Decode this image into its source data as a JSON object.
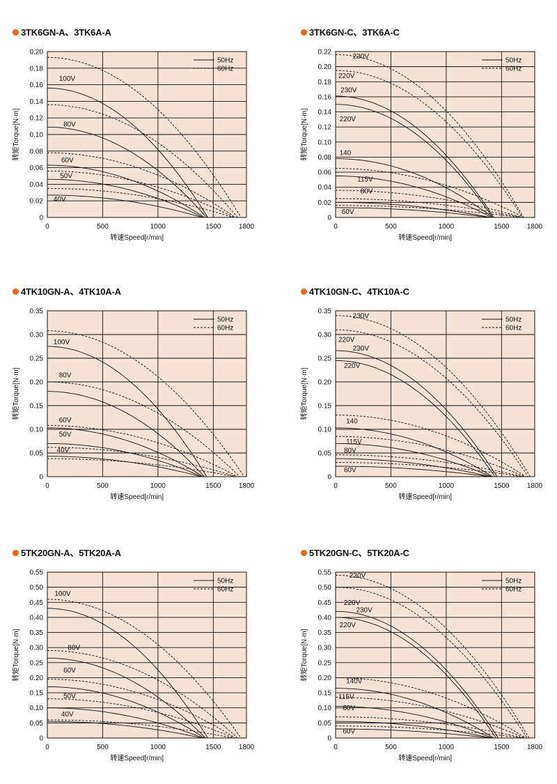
{
  "colors": {
    "plot_bg": "#f7e3d3",
    "grid": "#111111",
    "bullet": "#e8651c"
  },
  "chart_data": [
    {
      "type": "line",
      "title": "3TK6GN-A、3TK6A-A",
      "xlabel": "转速Speed[r/min]",
      "ylabel": "转矩Torque[N·m]",
      "xlim": [
        0,
        1800
      ],
      "ylim": [
        0,
        0.2
      ],
      "xticks": [
        0,
        500,
        1000,
        1500,
        1800
      ],
      "yticks": [
        0,
        0.02,
        0.04,
        0.06,
        0.08,
        0.1,
        0.12,
        0.14,
        0.16,
        0.18,
        0.2
      ],
      "ytick_labels": [
        "0",
        "0.02",
        "0.04",
        "0.06",
        "0.08",
        "0.10",
        "0.12",
        "0.14",
        "0.16",
        "0.18",
        "0.20"
      ],
      "legend": [
        "50Hz",
        "60Hz"
      ],
      "voltage_labels": [
        {
          "text": "100V",
          "x": 80,
          "y": 0.162
        },
        {
          "text": "80V",
          "x": 120,
          "y": 0.107
        },
        {
          "text": "60V",
          "x": 100,
          "y": 0.064
        },
        {
          "text": "50V",
          "x": 90,
          "y": 0.045
        },
        {
          "text": "40V",
          "x": 30,
          "y": 0.017
        }
      ],
      "series": [
        {
          "name": "100V 50Hz",
          "freq": "50Hz",
          "y0": 0.156,
          "xmax": 1450
        },
        {
          "name": "100V 60Hz",
          "freq": "60Hz",
          "y0": 0.193,
          "xmax": 1750
        },
        {
          "name": "80V 50Hz",
          "freq": "50Hz",
          "y0": 0.109,
          "xmax": 1440
        },
        {
          "name": "80V 60Hz",
          "freq": "60Hz",
          "y0": 0.136,
          "xmax": 1720
        },
        {
          "name": "60V 50Hz",
          "freq": "50Hz",
          "y0": 0.063,
          "xmax": 1420
        },
        {
          "name": "60V 60Hz",
          "freq": "60Hz",
          "y0": 0.078,
          "xmax": 1700
        },
        {
          "name": "50V 50Hz",
          "freq": "50Hz",
          "y0": 0.046,
          "xmax": 1410
        },
        {
          "name": "50V 60Hz",
          "freq": "60Hz",
          "y0": 0.056,
          "xmax": 1690
        },
        {
          "name": "40V 50Hz",
          "freq": "50Hz",
          "y0": 0.027,
          "xmax": 1400
        },
        {
          "name": "40V 60Hz",
          "freq": "60Hz",
          "y0": 0.035,
          "xmax": 1680
        }
      ]
    },
    {
      "type": "line",
      "title": "3TK6GN-C、3TK6A-C",
      "xlabel": "转速Speed[r/min]",
      "ylabel": "转矩Torque[N·m]",
      "xlim": [
        0,
        1800
      ],
      "ylim": [
        0,
        0.22
      ],
      "xticks": [
        0,
        500,
        1000,
        1500,
        1800
      ],
      "yticks": [
        0,
        0.02,
        0.04,
        0.06,
        0.08,
        0.1,
        0.12,
        0.14,
        0.16,
        0.18,
        0.2,
        0.22
      ],
      "ytick_labels": [
        "0",
        "0.02",
        "0.04",
        "0.06",
        "0.08",
        "0.10",
        "0.12",
        "0.14",
        "0.16",
        "0.18",
        "0.20",
        "0.22"
      ],
      "legend": [
        "50Hz",
        "60Hz"
      ],
      "voltage_labels": [
        {
          "text": "230V",
          "x": 130,
          "y": 0.208
        },
        {
          "text": "220V",
          "x": 0,
          "y": 0.182
        },
        {
          "text": "230V",
          "x": 20,
          "y": 0.163
        },
        {
          "text": "220V",
          "x": 10,
          "y": 0.125
        },
        {
          "text": "140",
          "x": 10,
          "y": 0.08
        },
        {
          "text": "115V",
          "x": 170,
          "y": 0.045
        },
        {
          "text": "80V",
          "x": 200,
          "y": 0.029
        },
        {
          "text": "60V",
          "x": 30,
          "y": 0.002
        }
      ],
      "series": [
        {
          "name": "230V 60Hz",
          "freq": "60Hz",
          "y0": 0.216,
          "xmax": 1700
        },
        {
          "name": "220V 60Hz",
          "freq": "60Hz",
          "y0": 0.195,
          "xmax": 1690
        },
        {
          "name": "230V 50Hz",
          "freq": "50Hz",
          "y0": 0.161,
          "xmax": 1430
        },
        {
          "name": "220V 50Hz",
          "freq": "50Hz",
          "y0": 0.15,
          "xmax": 1420
        },
        {
          "name": "140 50Hz",
          "freq": "50Hz",
          "y0": 0.078,
          "xmax": 1420
        },
        {
          "name": "140 60Hz",
          "freq": "60Hz",
          "y0": 0.065,
          "xmax": 1700
        },
        {
          "name": "115V 50Hz",
          "freq": "50Hz",
          "y0": 0.055,
          "xmax": 1410
        },
        {
          "name": "115V 60Hz",
          "freq": "60Hz",
          "y0": 0.036,
          "xmax": 1690
        },
        {
          "name": "80V 50Hz",
          "freq": "50Hz",
          "y0": 0.02,
          "xmax": 1400
        },
        {
          "name": "80V 60Hz",
          "freq": "60Hz",
          "y0": 0.025,
          "xmax": 1680
        },
        {
          "name": "60V 50Hz",
          "freq": "50Hz",
          "y0": 0.013,
          "xmax": 1390
        },
        {
          "name": "60V 60Hz",
          "freq": "60Hz",
          "y0": 0.016,
          "xmax": 1670
        }
      ]
    },
    {
      "type": "line",
      "title": "4TK10GN-A、4TK10A-A",
      "xlabel": "转速Speed[r/min]",
      "ylabel": "转矩Torque[N·m]",
      "xlim": [
        0,
        1800
      ],
      "ylim": [
        0,
        0.35
      ],
      "xticks": [
        0,
        500,
        1000,
        1500,
        1800
      ],
      "yticks": [
        0,
        0.05,
        0.1,
        0.15,
        0.2,
        0.25,
        0.3,
        0.35
      ],
      "ytick_labels": [
        "0",
        "0.05",
        "0.10",
        "0.15",
        "0.20",
        "0.25",
        "0.30",
        "0.35"
      ],
      "legend": [
        "50Hz",
        "60Hz"
      ],
      "voltage_labels": [
        {
          "text": "100V",
          "x": 30,
          "y": 0.275
        },
        {
          "text": "80V",
          "x": 80,
          "y": 0.205
        },
        {
          "text": "60V",
          "x": 80,
          "y": 0.11
        },
        {
          "text": "50V",
          "x": 80,
          "y": 0.08
        },
        {
          "text": "40V",
          "x": 60,
          "y": 0.047
        }
      ],
      "series": [
        {
          "name": "100V 50Hz",
          "freq": "50Hz",
          "y0": 0.275,
          "xmax": 1440
        },
        {
          "name": "100V 60Hz",
          "freq": "60Hz",
          "y0": 0.308,
          "xmax": 1780
        },
        {
          "name": "80V 50Hz",
          "freq": "50Hz",
          "y0": 0.18,
          "xmax": 1420
        },
        {
          "name": "80V 60Hz",
          "freq": "60Hz",
          "y0": 0.2,
          "xmax": 1740
        },
        {
          "name": "60V 50Hz",
          "freq": "50Hz",
          "y0": 0.103,
          "xmax": 1410
        },
        {
          "name": "60V 60Hz",
          "freq": "60Hz",
          "y0": 0.108,
          "xmax": 1720
        },
        {
          "name": "50V 50Hz",
          "freq": "50Hz",
          "y0": 0.07,
          "xmax": 1400
        },
        {
          "name": "50V 60Hz",
          "freq": "60Hz",
          "y0": 0.062,
          "xmax": 1710
        },
        {
          "name": "40V 50Hz",
          "freq": "50Hz",
          "y0": 0.043,
          "xmax": 1390
        },
        {
          "name": "40V 60Hz",
          "freq": "60Hz",
          "y0": 0.038,
          "xmax": 1700
        }
      ]
    },
    {
      "type": "line",
      "title": "4TK10GN-C、4TK10A-C",
      "xlabel": "转速Speed[r/min]",
      "ylabel": "转矩Torque[N·m]",
      "xlim": [
        0,
        1800
      ],
      "ylim": [
        0,
        0.35
      ],
      "xticks": [
        0,
        500,
        1000,
        1500,
        1800
      ],
      "yticks": [
        0,
        0.05,
        0.1,
        0.15,
        0.2,
        0.25,
        0.3,
        0.35
      ],
      "ytick_labels": [
        "0",
        "0.05",
        "0.10",
        "0.15",
        "0.20",
        "0.25",
        "0.30",
        "0.35"
      ],
      "legend": [
        "50Hz",
        "60Hz"
      ],
      "voltage_labels": [
        {
          "text": "230V",
          "x": 130,
          "y": 0.33
        },
        {
          "text": "220V",
          "x": 0,
          "y": 0.28
        },
        {
          "text": "230V",
          "x": 130,
          "y": 0.262
        },
        {
          "text": "220V",
          "x": 50,
          "y": 0.225
        },
        {
          "text": "140",
          "x": 70,
          "y": 0.108
        },
        {
          "text": "115V",
          "x": 70,
          "y": 0.065
        },
        {
          "text": "80V",
          "x": 50,
          "y": 0.046
        },
        {
          "text": "60V",
          "x": 50,
          "y": 0.005
        }
      ],
      "series": [
        {
          "name": "230V 60Hz",
          "freq": "60Hz",
          "y0": 0.34,
          "xmax": 1760
        },
        {
          "name": "220V 60Hz",
          "freq": "60Hz",
          "y0": 0.31,
          "xmax": 1740
        },
        {
          "name": "230V 50Hz",
          "freq": "50Hz",
          "y0": 0.266,
          "xmax": 1460
        },
        {
          "name": "220V 50Hz",
          "freq": "50Hz",
          "y0": 0.245,
          "xmax": 1440
        },
        {
          "name": "140 50Hz",
          "freq": "50Hz",
          "y0": 0.103,
          "xmax": 1420
        },
        {
          "name": "140 60Hz",
          "freq": "60Hz",
          "y0": 0.13,
          "xmax": 1720
        },
        {
          "name": "115V 50Hz",
          "freq": "50Hz",
          "y0": 0.07,
          "xmax": 1410
        },
        {
          "name": "115V 60Hz",
          "freq": "60Hz",
          "y0": 0.085,
          "xmax": 1710
        },
        {
          "name": "80V 50Hz",
          "freq": "50Hz",
          "y0": 0.038,
          "xmax": 1400
        },
        {
          "name": "80V 60Hz",
          "freq": "60Hz",
          "y0": 0.046,
          "xmax": 1700
        },
        {
          "name": "60V 50Hz",
          "freq": "50Hz",
          "y0": 0.022,
          "xmax": 1390
        },
        {
          "name": "60V 60Hz",
          "freq": "60Hz",
          "y0": 0.03,
          "xmax": 1690
        }
      ]
    },
    {
      "type": "line",
      "title": "5TK20GN-A、5TK20A-A",
      "xlabel": "转速Speed[r/min]",
      "ylabel": "转矩Torque[N·m]",
      "xlim": [
        0,
        1800
      ],
      "ylim": [
        0,
        0.55
      ],
      "xticks": [
        0,
        500,
        1000,
        1500,
        1800
      ],
      "yticks": [
        0,
        0.05,
        0.1,
        0.15,
        0.2,
        0.25,
        0.3,
        0.35,
        0.4,
        0.45,
        0.5,
        0.55
      ],
      "ytick_labels": [
        "0",
        "0.05",
        "0.10",
        "0.15",
        "0.20",
        "0.25",
        "0.30",
        "0.35",
        "0.40",
        "0.45",
        "0.50",
        "0.55"
      ],
      "legend": [
        "50Hz",
        "60Hz"
      ],
      "voltage_labels": [
        {
          "text": "100V",
          "x": 40,
          "y": 0.465
        },
        {
          "text": "80V",
          "x": 160,
          "y": 0.285
        },
        {
          "text": "60V",
          "x": 120,
          "y": 0.21
        },
        {
          "text": "50V",
          "x": 120,
          "y": 0.125
        },
        {
          "text": "40V",
          "x": 100,
          "y": 0.065
        }
      ],
      "series": [
        {
          "name": "100V 50Hz",
          "freq": "50Hz",
          "y0": 0.43,
          "xmax": 1450
        },
        {
          "name": "100V 60Hz",
          "freq": "60Hz",
          "y0": 0.46,
          "xmax": 1750
        },
        {
          "name": "80V 50Hz",
          "freq": "50Hz",
          "y0": 0.265,
          "xmax": 1430
        },
        {
          "name": "80V 60Hz",
          "freq": "60Hz",
          "y0": 0.29,
          "xmax": 1720
        },
        {
          "name": "60V 50Hz",
          "freq": "50Hz",
          "y0": 0.17,
          "xmax": 1420
        },
        {
          "name": "60V 60Hz",
          "freq": "60Hz",
          "y0": 0.195,
          "xmax": 1700
        },
        {
          "name": "50V 50Hz",
          "freq": "50Hz",
          "y0": 0.1,
          "xmax": 1410
        },
        {
          "name": "50V 60Hz",
          "freq": "60Hz",
          "y0": 0.13,
          "xmax": 1690
        },
        {
          "name": "40V 50Hz",
          "freq": "50Hz",
          "y0": 0.055,
          "xmax": 1400
        },
        {
          "name": "40V 60Hz",
          "freq": "60Hz",
          "y0": 0.06,
          "xmax": 1680
        }
      ]
    },
    {
      "type": "line",
      "title": "5TK20GN-C、5TK20A-C",
      "xlabel": "转速Speed[r/min]",
      "ylabel": "转矩Torque[N·m]",
      "xlim": [
        0,
        1800
      ],
      "ylim": [
        0,
        0.55
      ],
      "xticks": [
        0,
        500,
        1000,
        1500,
        1800
      ],
      "yticks": [
        0,
        0.05,
        0.1,
        0.15,
        0.2,
        0.25,
        0.3,
        0.35,
        0.4,
        0.45,
        0.5,
        0.55
      ],
      "ytick_labels": [
        "0",
        "0.05",
        "0.10",
        "0.15",
        "0.20",
        "0.25",
        "0.30",
        "0.35",
        "0.40",
        "0.45",
        "0.50",
        "0.55"
      ],
      "legend": [
        "50Hz",
        "60Hz"
      ],
      "voltage_labels": [
        {
          "text": "230V",
          "x": 100,
          "y": 0.525
        },
        {
          "text": "220V",
          "x": 50,
          "y": 0.435
        },
        {
          "text": "230V",
          "x": 160,
          "y": 0.41
        },
        {
          "text": "220V",
          "x": 10,
          "y": 0.36
        },
        {
          "text": "140V",
          "x": 70,
          "y": 0.175
        },
        {
          "text": "115V",
          "x": 0,
          "y": 0.122
        },
        {
          "text": "80V",
          "x": 40,
          "y": 0.085
        },
        {
          "text": "60V",
          "x": 40,
          "y": 0.008
        }
      ],
      "series": [
        {
          "name": "230V 60Hz",
          "freq": "60Hz",
          "y0": 0.54,
          "xmax": 1750
        },
        {
          "name": "220V 60Hz",
          "freq": "60Hz",
          "y0": 0.5,
          "xmax": 1730
        },
        {
          "name": "230V 50Hz",
          "freq": "50Hz",
          "y0": 0.42,
          "xmax": 1470
        },
        {
          "name": "220V 50Hz",
          "freq": "50Hz",
          "y0": 0.4,
          "xmax": 1450
        },
        {
          "name": "140V 50Hz",
          "freq": "50Hz",
          "y0": 0.165,
          "xmax": 1430
        },
        {
          "name": "140V 60Hz",
          "freq": "60Hz",
          "y0": 0.2,
          "xmax": 1720
        },
        {
          "name": "115V 50Hz",
          "freq": "50Hz",
          "y0": 0.105,
          "xmax": 1420
        },
        {
          "name": "115V 60Hz",
          "freq": "60Hz",
          "y0": 0.135,
          "xmax": 1710
        },
        {
          "name": "80V 50Hz",
          "freq": "50Hz",
          "y0": 0.055,
          "xmax": 1410
        },
        {
          "name": "80V 60Hz",
          "freq": "60Hz",
          "y0": 0.07,
          "xmax": 1700
        },
        {
          "name": "60V 50Hz",
          "freq": "50Hz",
          "y0": 0.03,
          "xmax": 1400
        },
        {
          "name": "60V 60Hz",
          "freq": "60Hz",
          "y0": 0.04,
          "xmax": 1690
        }
      ]
    }
  ]
}
